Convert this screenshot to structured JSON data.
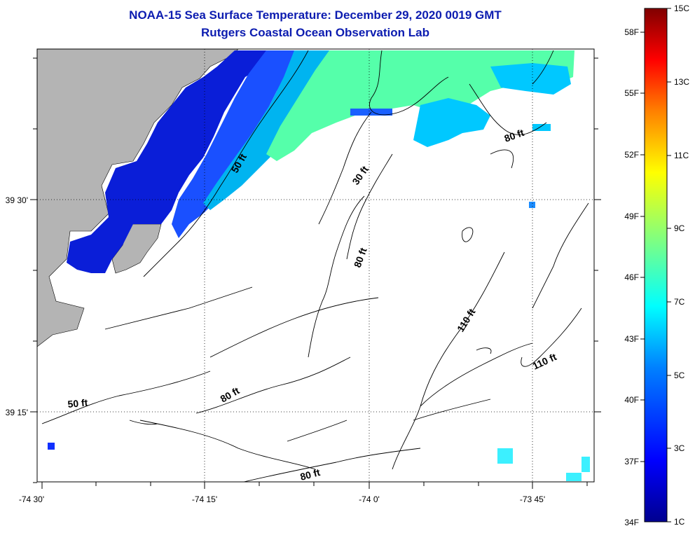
{
  "title": {
    "line1": "NOAA-15 Sea Surface Temperature:  December 29, 2020 0019 GMT",
    "line2": "Rutgers Coastal Ocean Observation Lab"
  },
  "axes": {
    "x_ticks": [
      "-74 30'",
      "-74 15'",
      "-74 0'",
      "-73 45'"
    ],
    "y_ticks": [
      "39 30'",
      "39 15'"
    ]
  },
  "contour_labels": [
    "50 ft",
    "30 ft",
    "80 ft",
    "80 ft",
    "110 ft",
    "110 ft",
    "80 ft",
    "50 ft",
    "80 ft"
  ],
  "colorbar": {
    "fahrenheit": [
      "58F",
      "55F",
      "52F",
      "49F",
      "46F",
      "43F",
      "40F",
      "37F",
      "34F"
    ],
    "celsius": [
      "15C",
      "13C",
      "11C",
      "9C",
      "7C",
      "5C",
      "3C",
      "1C"
    ],
    "colors": [
      "#00008f",
      "#0000ff",
      "#0080ff",
      "#00ffff",
      "#80ff80",
      "#ffff00",
      "#ff8000",
      "#ff0000",
      "#800000"
    ]
  },
  "colors": {
    "land": "#b4b4b4",
    "title": "#0c1cb0"
  }
}
